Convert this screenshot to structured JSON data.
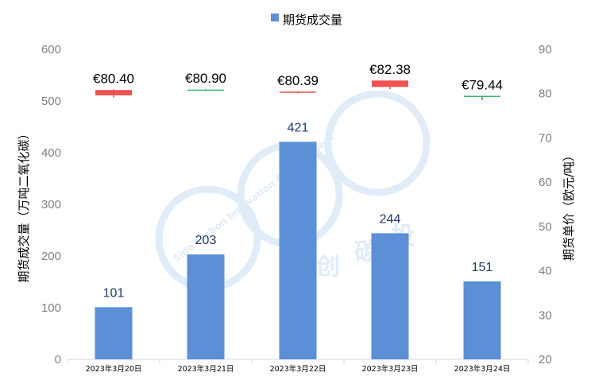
{
  "chart_data": {
    "type": "bar",
    "legend": {
      "label": "期货成交量",
      "color": "#5b8fd6",
      "position": "top-center"
    },
    "categories": [
      "2023年3月20日",
      "2023年3月21日",
      "2023年3月22日",
      "2023年3月23日",
      "2023年3月24日"
    ],
    "series": [
      {
        "name": "期货成交量",
        "values": [
          101,
          203,
          421,
          244,
          151
        ],
        "color": "#5b8fd6",
        "axis": "left"
      }
    ],
    "price_series": {
      "type": "candlestick",
      "axis": "right",
      "labels": [
        "€80.40",
        "€80.90",
        "€80.39",
        "€82.38",
        "€79.44"
      ],
      "ohlc": [
        {
          "open": 80.8,
          "high": 80.95,
          "low": 79.15,
          "close": 79.6
        },
        {
          "open": 80.8,
          "high": 81.0,
          "low": 80.8,
          "close": 80.9
        },
        {
          "open": 80.45,
          "high": 80.5,
          "low": 80.05,
          "close": 80.25
        },
        {
          "open": 82.95,
          "high": 83.0,
          "low": 81.0,
          "close": 81.5
        },
        {
          "open": 79.4,
          "high": 79.5,
          "low": 78.5,
          "close": 79.5
        }
      ],
      "up_color": "#3cb371",
      "down_color": "#f05050"
    },
    "ylabel": "期货成交量（万吨二氧化碳）",
    "ylabel_right": "期货单价（欧元/吨）",
    "ylim": [
      0,
      600
    ],
    "ylim_right": [
      20,
      90
    ],
    "yticks": [
      "0",
      "100",
      "200",
      "300",
      "400",
      "500",
      "600"
    ],
    "yticks_right": [
      "20",
      "30",
      "40",
      "50",
      "60",
      "70",
      "80",
      "90"
    ],
    "grid": false,
    "watermark": {
      "latin": "Sino Carbon Innovation & Investment",
      "chinese": [
        "创",
        "碳",
        "投"
      ],
      "color": "#a9c9ec"
    }
  }
}
